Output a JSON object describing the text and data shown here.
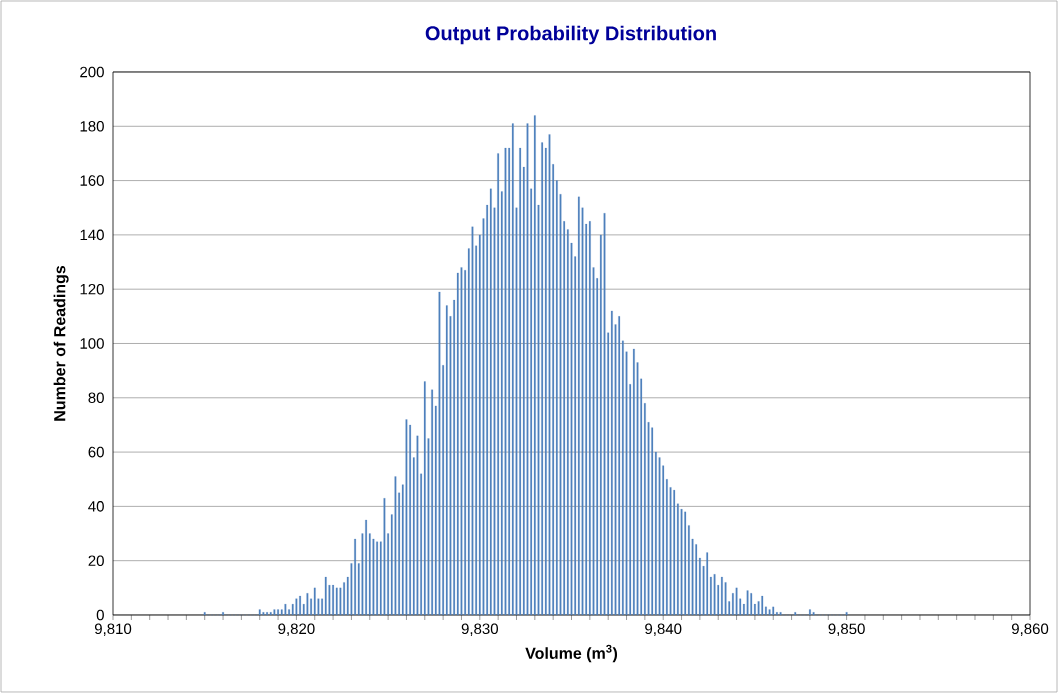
{
  "chart_data": {
    "type": "bar",
    "title": "Output Probability Distribution",
    "xlabel": "Volume (m$^{3}$)",
    "ylabel": "Number of Readings",
    "color": "#4f81bd",
    "grid": "y",
    "xlim": [
      9810,
      9860
    ],
    "ylim": [
      0,
      200
    ],
    "xticks": [
      {
        "value": 9810,
        "label": "9,810"
      },
      {
        "value": 9820,
        "label": "9,820"
      },
      {
        "value": 9830,
        "label": "9,830"
      },
      {
        "value": 9840,
        "label": "9,840"
      },
      {
        "value": 9850,
        "label": "9,850"
      },
      {
        "value": 9860,
        "label": "9,860"
      }
    ],
    "yticks": [
      0,
      20,
      40,
      60,
      80,
      100,
      120,
      140,
      160,
      180,
      200
    ],
    "x": [
      9815.0,
      9815.2,
      9815.4,
      9815.6,
      9815.8,
      9816.0,
      9816.2,
      9816.4,
      9816.6,
      9816.8,
      9817.0,
      9817.2,
      9817.4,
      9817.6,
      9817.8,
      9818.0,
      9818.2,
      9818.4,
      9818.6,
      9818.8,
      9819.0,
      9819.2,
      9819.4,
      9819.6,
      9819.8,
      9820.0,
      9820.2,
      9820.4,
      9820.6,
      9820.8,
      9821.0,
      9821.2,
      9821.4,
      9821.6,
      9821.8,
      9822.0,
      9822.2,
      9822.4,
      9822.6,
      9822.8,
      9823.0,
      9823.2,
      9823.4,
      9823.6,
      9823.8,
      9824.0,
      9824.2,
      9824.4,
      9824.6,
      9824.8,
      9825.0,
      9825.2,
      9825.4,
      9825.6,
      9825.8,
      9826.0,
      9826.2,
      9826.4,
      9826.6,
      9826.8,
      9827.0,
      9827.2,
      9827.4,
      9827.6,
      9827.8,
      9828.0,
      9828.2,
      9828.4,
      9828.6,
      9828.8,
      9829.0,
      9829.2,
      9829.4,
      9829.6,
      9829.8,
      9830.0,
      9830.2,
      9830.4,
      9830.6,
      9830.8,
      9831.0,
      9831.2,
      9831.4,
      9831.6,
      9831.8,
      9832.0,
      9832.2,
      9832.4,
      9832.6,
      9832.8,
      9833.0,
      9833.2,
      9833.4,
      9833.6,
      9833.8,
      9834.0,
      9834.2,
      9834.4,
      9834.6,
      9834.8,
      9835.0,
      9835.2,
      9835.4,
      9835.6,
      9835.8,
      9836.0,
      9836.2,
      9836.4,
      9836.6,
      9836.8,
      9837.0,
      9837.2,
      9837.4,
      9837.6,
      9837.8,
      9838.0,
      9838.2,
      9838.4,
      9838.6,
      9838.8,
      9839.0,
      9839.2,
      9839.4,
      9839.6,
      9839.8,
      9840.0,
      9840.2,
      9840.4,
      9840.6,
      9840.8,
      9841.0,
      9841.2,
      9841.4,
      9841.6,
      9841.8,
      9842.0,
      9842.2,
      9842.4,
      9842.6,
      9842.8,
      9843.0,
      9843.2,
      9843.4,
      9843.6,
      9843.8,
      9844.0,
      9844.2,
      9844.4,
      9844.6,
      9844.8,
      9845.0,
      9845.2,
      9845.4,
      9845.6,
      9845.8,
      9846.0,
      9846.2,
      9846.4,
      9846.6,
      9846.8,
      9847.0,
      9847.2,
      9847.4,
      9847.6,
      9847.8,
      9848.0,
      9848.2,
      9848.4,
      9848.6,
      9848.8,
      9849.0,
      9849.2,
      9849.4,
      9849.6,
      9849.8,
      9850.0
    ],
    "values": [
      1,
      0,
      0,
      0,
      0,
      1,
      0,
      0,
      0,
      0,
      0,
      0,
      0,
      0,
      0,
      2,
      1,
      1,
      1,
      2,
      2,
      2,
      4,
      2,
      4,
      6,
      7,
      4,
      8,
      6,
      10,
      6,
      6,
      14,
      11,
      11,
      10,
      10,
      12,
      14,
      19,
      28,
      19,
      30,
      35,
      30,
      28,
      27,
      27,
      43,
      30,
      37,
      51,
      45,
      48,
      72,
      70,
      58,
      66,
      52,
      86,
      65,
      83,
      77,
      119,
      92,
      114,
      110,
      116,
      126,
      128,
      127,
      135,
      143,
      136,
      140,
      146,
      151,
      157,
      150,
      170,
      156,
      172,
      172,
      181,
      150,
      172,
      165,
      181,
      157,
      184,
      151,
      174,
      172,
      177,
      166,
      160,
      155,
      145,
      142,
      137,
      132,
      154,
      150,
      144,
      145,
      128,
      124,
      140,
      148,
      104,
      112,
      107,
      110,
      101,
      97,
      85,
      98,
      93,
      87,
      78,
      71,
      69,
      60,
      58,
      55,
      50,
      47,
      46,
      41,
      39,
      38,
      33,
      28,
      26,
      21,
      18,
      23,
      14,
      15,
      11,
      14,
      12,
      5,
      8,
      10,
      6,
      4,
      9,
      8,
      4,
      5,
      7,
      3,
      2,
      3,
      1,
      1,
      0,
      0,
      0,
      1,
      0,
      0,
      0,
      2,
      1,
      0,
      0,
      0,
      0,
      0,
      0,
      0,
      0,
      1
    ]
  }
}
